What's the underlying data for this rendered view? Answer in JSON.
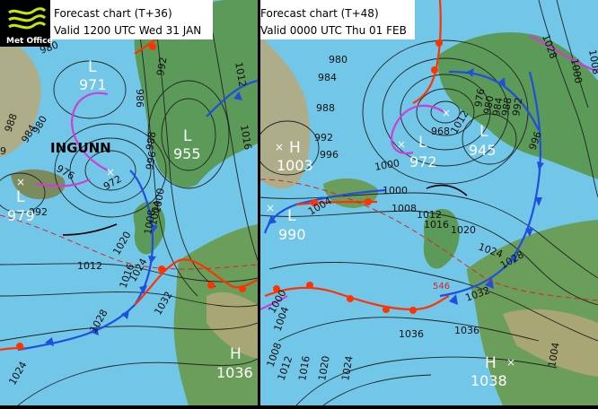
{
  "logo": {
    "text": "Met Office"
  },
  "panels": [
    {
      "header_line1": "Forecast chart (T+36)",
      "header_line2": "Valid 1200 UTC Wed 31 JAN",
      "storm_name": "INGUNN",
      "centres": [
        {
          "type": "L",
          "value": "971"
        },
        {
          "type": "L",
          "value": "955"
        },
        {
          "type": "L",
          "value": "979"
        },
        {
          "type": "H",
          "value": "1036"
        }
      ],
      "centre_pressure_labels": [
        "972"
      ],
      "isobar_labels": [
        "980",
        "992",
        "1012",
        "1016",
        "986",
        "988",
        "988",
        "984",
        "980",
        "976",
        "992",
        "996",
        "1000",
        "1004",
        "1008",
        "1012",
        "1016",
        "1020",
        "1024",
        "1028",
        "1032",
        "1024",
        "9"
      ]
    },
    {
      "header_line1": "Forecast chart (T+48)",
      "header_line2": "Valid 0000 UTC Thu 01 FEB",
      "centres": [
        {
          "type": "H",
          "value": "1003"
        },
        {
          "type": "L",
          "value": "972"
        },
        {
          "type": "L",
          "value": "945"
        },
        {
          "type": "L",
          "value": "990"
        },
        {
          "type": "H",
          "value": "1038"
        }
      ],
      "centre_pressure_labels": [
        "968"
      ],
      "thickness_label": "546",
      "isobar_labels": [
        "980",
        "984",
        "988",
        "992",
        "996",
        "1000",
        "1008",
        "1012",
        "1016",
        "1020",
        "1024",
        "1028",
        "1032",
        "1036",
        "1004",
        "1000",
        "1004",
        "1008",
        "1012",
        "1016",
        "1020",
        "1024",
        "1028",
        "1000",
        "1008",
        "1012",
        "976",
        "980",
        "984",
        "988",
        "992",
        "996",
        "1004",
        "1036",
        "1000"
      ]
    }
  ],
  "colors": {
    "sea": "#72c6e8",
    "land": "#5b9a58",
    "warm_front": "#ff3300",
    "cold_front": "#1f4fe0",
    "occlusion": "#d23bd6",
    "isobar": "#222222"
  }
}
